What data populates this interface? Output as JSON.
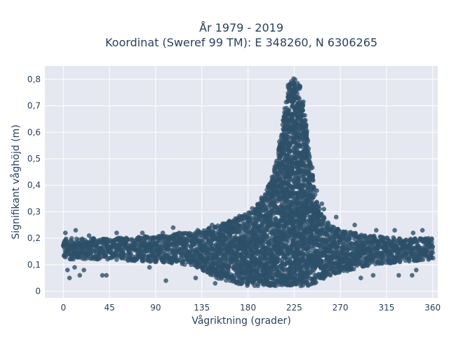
{
  "chart_data": {
    "type": "scatter",
    "title_line1": "År 1979 - 2019",
    "title_line2": "Koordinat (Sweref 99 TM): E 348260, N 6306265",
    "xlabel": "Vågriktning (grader)",
    "ylabel": "Signifikant våghöjd (m)",
    "xlim": [
      -18,
      365
    ],
    "ylim": [
      -0.025,
      0.85
    ],
    "x_ticks": [
      0,
      45,
      90,
      135,
      180,
      225,
      270,
      315,
      360
    ],
    "x_tick_labels": [
      "0",
      "45",
      "90",
      "135",
      "180",
      "225",
      "270",
      "315",
      "360"
    ],
    "y_ticks": [
      0,
      0.1,
      0.2,
      0.3,
      0.4,
      0.5,
      0.6,
      0.7,
      0.8
    ],
    "y_tick_labels": [
      "0",
      "0,1",
      "0,2",
      "0,3",
      "0,4",
      "0,5",
      "0,6",
      "0,7",
      "0,8"
    ],
    "grid": true,
    "marker_color": "#2e5069",
    "plot_bg": "#e5e8f0",
    "envelope": {
      "x": [
        0,
        10,
        20,
        45,
        90,
        120,
        135,
        150,
        165,
        180,
        190,
        200,
        205,
        210,
        215,
        220,
        225,
        230,
        235,
        240,
        245,
        250,
        260,
        270,
        300,
        330,
        360
      ],
      "upper": [
        0.2,
        0.2,
        0.2,
        0.2,
        0.21,
        0.22,
        0.23,
        0.25,
        0.27,
        0.3,
        0.33,
        0.4,
        0.45,
        0.55,
        0.68,
        0.79,
        0.81,
        0.79,
        0.7,
        0.53,
        0.38,
        0.3,
        0.25,
        0.23,
        0.21,
        0.2,
        0.2
      ],
      "lower": [
        0.12,
        0.12,
        0.12,
        0.12,
        0.11,
        0.1,
        0.08,
        0.05,
        0.03,
        0.02,
        0.02,
        0.02,
        0.02,
        0.02,
        0.02,
        0.02,
        0.02,
        0.02,
        0.02,
        0.02,
        0.03,
        0.04,
        0.06,
        0.07,
        0.1,
        0.11,
        0.12
      ]
    },
    "outliers": [
      {
        "x": 2,
        "y": 0.22
      },
      {
        "x": 4,
        "y": 0.08
      },
      {
        "x": 6,
        "y": 0.05
      },
      {
        "x": 11,
        "y": 0.09
      },
      {
        "x": 12,
        "y": 0.23
      },
      {
        "x": 16,
        "y": 0.06
      },
      {
        "x": 20,
        "y": 0.08
      },
      {
        "x": 25,
        "y": 0.21
      },
      {
        "x": 38,
        "y": 0.06
      },
      {
        "x": 42,
        "y": 0.06
      },
      {
        "x": 52,
        "y": 0.22
      },
      {
        "x": 77,
        "y": 0.22
      },
      {
        "x": 84,
        "y": 0.09
      },
      {
        "x": 97,
        "y": 0.22
      },
      {
        "x": 100,
        "y": 0.04
      },
      {
        "x": 107,
        "y": 0.24
      },
      {
        "x": 113,
        "y": 0.22
      },
      {
        "x": 129,
        "y": 0.05
      },
      {
        "x": 131,
        "y": 0.23
      },
      {
        "x": 142,
        "y": 0.07
      },
      {
        "x": 145,
        "y": 0.25
      },
      {
        "x": 148,
        "y": 0.03
      },
      {
        "x": 233,
        "y": 0.64
      },
      {
        "x": 236,
        "y": 0.59
      },
      {
        "x": 237,
        "y": 0.45
      },
      {
        "x": 247,
        "y": 0.38
      },
      {
        "x": 252,
        "y": 0.33
      },
      {
        "x": 254,
        "y": 0.31
      },
      {
        "x": 266,
        "y": 0.28
      },
      {
        "x": 284,
        "y": 0.25
      },
      {
        "x": 290,
        "y": 0.05
      },
      {
        "x": 302,
        "y": 0.06
      },
      {
        "x": 305,
        "y": 0.23
      },
      {
        "x": 323,
        "y": 0.23
      },
      {
        "x": 327,
        "y": 0.06
      },
      {
        "x": 340,
        "y": 0.06
      },
      {
        "x": 341,
        "y": 0.22
      },
      {
        "x": 344,
        "y": 0.08
      },
      {
        "x": 350,
        "y": 0.23
      },
      {
        "x": 356,
        "y": 0.12
      }
    ]
  }
}
